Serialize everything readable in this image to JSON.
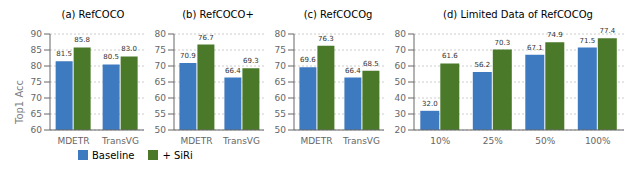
{
  "chart_data": [
    {
      "type": "bar",
      "title": "(a) RefCOCO",
      "ylabel": "Top1 Acc",
      "categories": [
        "MDETR",
        "TransVG"
      ],
      "series": [
        {
          "name": "Baseline",
          "color": "#3d7abf",
          "values": [
            81.5,
            80.5
          ],
          "value_labels": [
            "81.5",
            "80.5"
          ]
        },
        {
          "name": "+ SiRi",
          "color": "#4a7a29",
          "values": [
            85.8,
            83.0
          ],
          "value_labels": [
            "85.8",
            "83.0"
          ]
        }
      ],
      "ylim": [
        60,
        90
      ],
      "yticks": [
        60,
        65,
        70,
        75,
        80,
        85,
        90
      ],
      "grid": true,
      "data_labels": true,
      "legend": "lower left"
    },
    {
      "type": "bar",
      "title": "(b) RefCOCO+",
      "categories": [
        "MDETR",
        "TransVG"
      ],
      "series": [
        {
          "name": "Baseline",
          "color": "#3d7abf",
          "values": [
            70.9,
            66.4
          ],
          "value_labels": [
            "70.9",
            "66.4"
          ]
        },
        {
          "name": "+ SiRi",
          "color": "#4a7a29",
          "values": [
            76.7,
            69.3
          ],
          "value_labels": [
            "76.7",
            "69.3"
          ]
        }
      ],
      "ylim": [
        50,
        80
      ],
      "yticks": [
        50,
        55,
        60,
        65,
        70,
        75,
        80
      ],
      "grid": true,
      "data_labels": true
    },
    {
      "type": "bar",
      "title": "(c) RefCOCOg",
      "categories": [
        "MDETR",
        "TransVG"
      ],
      "series": [
        {
          "name": "Baseline",
          "color": "#3d7abf",
          "values": [
            69.6,
            66.4
          ],
          "value_labels": [
            "69.6",
            "66.4"
          ]
        },
        {
          "name": "+ SiRi",
          "color": "#4a7a29",
          "values": [
            76.3,
            68.5
          ],
          "value_labels": [
            "76.3",
            "68.5"
          ]
        }
      ],
      "ylim": [
        50,
        80
      ],
      "yticks": [
        50,
        55,
        60,
        65,
        70,
        75,
        80
      ],
      "grid": true,
      "data_labels": true
    },
    {
      "type": "bar",
      "title": "(d) Limited Data of RefCOCOg",
      "categories": [
        "10%",
        "25%",
        "50%",
        "100%"
      ],
      "series": [
        {
          "name": "Baseline",
          "color": "#3d7abf",
          "values": [
            32.0,
            56.2,
            67.1,
            71.5
          ],
          "value_labels": [
            "32.0",
            "56.2",
            "67.1",
            "71.5"
          ]
        },
        {
          "name": "+ SiRi",
          "color": "#4a7a29",
          "values": [
            61.6,
            70.3,
            74.9,
            77.4
          ],
          "value_labels": [
            "61.6",
            "70.3",
            "74.9",
            "77.4"
          ]
        }
      ],
      "ylim": [
        20,
        80
      ],
      "yticks": [
        20,
        30,
        40,
        50,
        60,
        70,
        80
      ],
      "grid": true,
      "data_labels": true
    }
  ]
}
